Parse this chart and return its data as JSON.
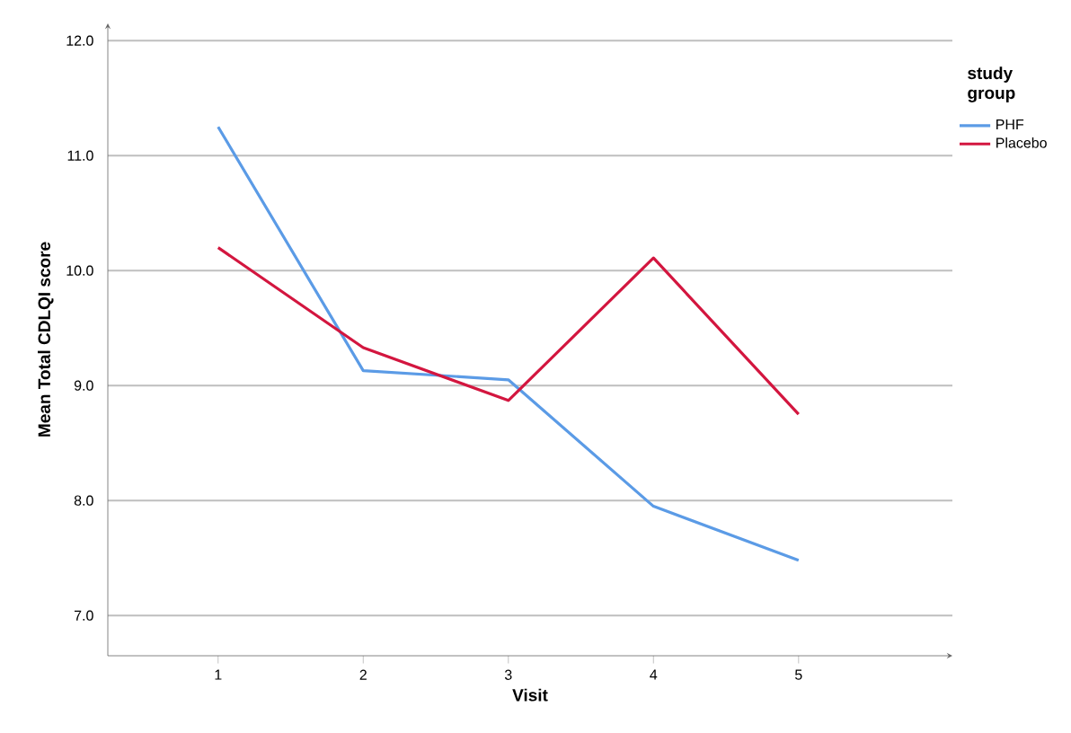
{
  "chart_data": {
    "type": "line",
    "xlabel": "Visit",
    "ylabel": "Mean Total CDLQI score",
    "legend_title": "study group",
    "categories": [
      "1",
      "2",
      "3",
      "4",
      "5"
    ],
    "series": [
      {
        "name": "PHF",
        "color": "#5b9be6",
        "values": [
          11.25,
          9.13,
          9.05,
          7.95,
          7.48
        ]
      },
      {
        "name": "Placebo",
        "color": "#d3163f",
        "values": [
          10.2,
          9.33,
          8.87,
          10.11,
          8.75
        ]
      }
    ],
    "ylim": [
      6.65,
      12.15
    ],
    "yticks": [
      {
        "value": 7,
        "label": "7.0"
      },
      {
        "value": 8,
        "label": "8.0"
      },
      {
        "value": 9,
        "label": "9.0"
      },
      {
        "value": 10,
        "label": "10.0"
      },
      {
        "value": 11,
        "label": "11.0"
      },
      {
        "value": 12,
        "label": "12.0"
      }
    ],
    "grid": "y",
    "legend": "top right"
  }
}
